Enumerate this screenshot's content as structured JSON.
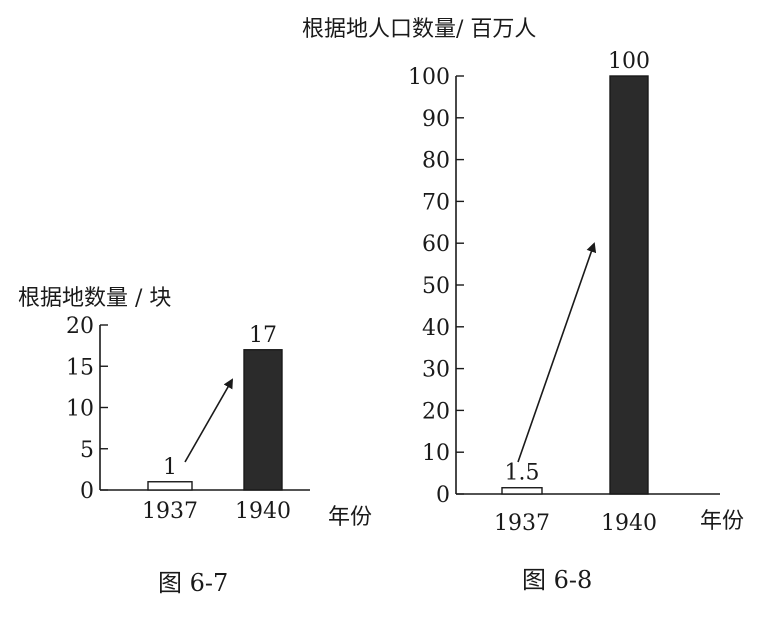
{
  "colors": {
    "bar_fill": "#2b2b2b",
    "outline": "#1a1a1a",
    "background": "#ffffff"
  },
  "chart_data": [
    {
      "type": "bar",
      "caption": "图 6-7",
      "ylabel": "根据地数量 / 块",
      "xlabel": "年份",
      "ylim": [
        0,
        20
      ],
      "yticks": [
        0,
        5,
        10,
        15,
        20
      ],
      "categories": [
        "1937",
        "1940"
      ],
      "values": [
        1,
        17
      ],
      "value_labels": [
        "1",
        "17"
      ],
      "bar_styles": [
        "outline",
        "filled"
      ],
      "annotation": "arrow from 1937 bar toward 1940 bar"
    },
    {
      "type": "bar",
      "caption": "图 6-8",
      "ylabel": "根据地人口数量/ 百万人",
      "xlabel": "年份",
      "ylim": [
        0,
        100
      ],
      "yticks": [
        0,
        10,
        20,
        30,
        40,
        50,
        60,
        70,
        80,
        90,
        100
      ],
      "categories": [
        "1937",
        "1940"
      ],
      "values": [
        1.5,
        100
      ],
      "value_labels": [
        "1.5",
        "100"
      ],
      "bar_styles": [
        "outline",
        "filled"
      ],
      "annotation": "arrow from 1937 bar toward 1940 bar"
    }
  ]
}
